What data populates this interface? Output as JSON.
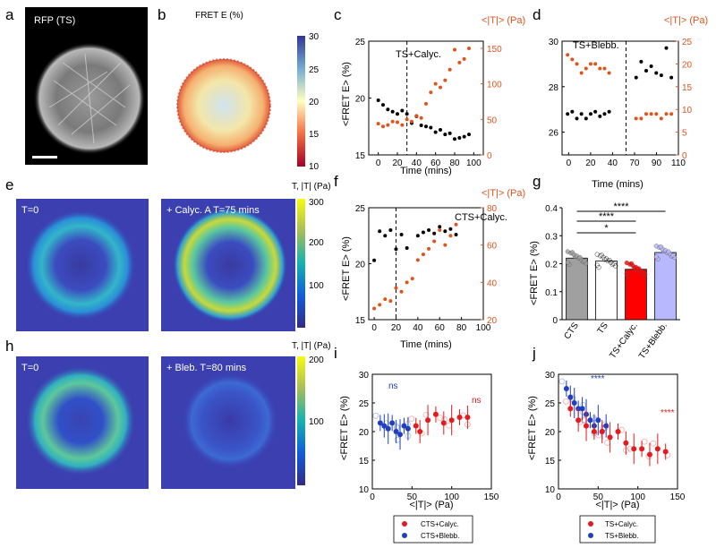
{
  "panels": {
    "a": {
      "letter": "a",
      "label": "RFP (TS)"
    },
    "b": {
      "letter": "b",
      "title": "FRET E (%)",
      "colorbar_ticks": [
        "30",
        "25",
        "20",
        "15",
        "10"
      ]
    },
    "c": {
      "letter": "c",
      "annotation": "TS+Calyc.",
      "right_label": "<|T|> (Pa)",
      "xlabel": "Time (mins)",
      "ylabel": "<FRET E> (%)"
    },
    "d": {
      "letter": "d",
      "annotation": "TS+Blebb.",
      "right_label": "<|T|> (Pa)",
      "xlabel": "Time (mins)"
    },
    "e": {
      "letter": "e",
      "left_label": "T=0",
      "right_label": "+ Calyc. A T=75 mins",
      "cbar_title": "T, |T| (Pa)",
      "cbar_ticks": [
        "300",
        "200",
        "100"
      ]
    },
    "f": {
      "letter": "f",
      "annotation": "CTS+Calyc.",
      "right_label": "<|T|> (Pa)",
      "xlabel": "Time (mins)",
      "ylabel": "<FRET E> (%)"
    },
    "g": {
      "letter": "g",
      "ylabel": "<FRET E> (%)",
      "sig": [
        "*",
        "****",
        "****"
      ]
    },
    "h": {
      "letter": "h",
      "left_label": "T=0",
      "right_label": "+ Bleb. T=80 mins",
      "cbar_title": "T, |T| (Pa)",
      "cbar_ticks": [
        "200",
        "100"
      ]
    },
    "i": {
      "letter": "i",
      "ylabel": "<FRET E> (%)",
      "xlabel": "<|T|> (Pa)",
      "ns_blue": "ns",
      "ns_red": "ns",
      "legend": [
        "CTS+Calyc.",
        "CTS+Blebb."
      ]
    },
    "j": {
      "letter": "j",
      "ylabel": "<FRET E> (%)",
      "xlabel": "<|T|> (Pa)",
      "sig_blue": "****",
      "sig_red": "****",
      "legend": [
        "TS+Calyc.",
        "TS+Blebb."
      ]
    }
  },
  "colors": {
    "black_series": "#000000",
    "orange_series": "#e0541c",
    "red": "#e41a1c",
    "blue": "#1f3fbf",
    "bar_gray": "#a0a0a0",
    "bar_white": "#ffffff",
    "bar_red": "#ff0000",
    "bar_blue": "#b8b8ff"
  },
  "chart_data": [
    {
      "id": "c",
      "type": "scatter",
      "xlabel": "Time (mins)",
      "ylabel": "<FRET E> (%)",
      "y2label": "<|T|> (Pa)",
      "xlim": [
        -10,
        110
      ],
      "xticks": [
        0,
        20,
        40,
        60,
        80,
        100
      ],
      "ylim": [
        15,
        25
      ],
      "yticks": [
        15,
        20,
        25
      ],
      "y2lim": [
        0,
        160
      ],
      "y2ticks": [
        0,
        50,
        100,
        150
      ],
      "vline": 30,
      "series": [
        {
          "name": "FRET",
          "axis": "left",
          "color": "#000000",
          "x": [
            0,
            5,
            10,
            15,
            20,
            25,
            30,
            35,
            40,
            45,
            50,
            55,
            60,
            65,
            70,
            75,
            80,
            85,
            90,
            95
          ],
          "y": [
            19.8,
            19.4,
            19.0,
            18.8,
            18.6,
            18.9,
            18.6,
            17.8,
            18.4,
            17.6,
            17.5,
            17.4,
            17.0,
            17.2,
            16.8,
            16.9,
            16.4,
            16.5,
            16.6,
            16.8
          ]
        },
        {
          "name": "Traction",
          "axis": "right",
          "color": "#e0541c",
          "x": [
            0,
            5,
            10,
            15,
            20,
            25,
            30,
            35,
            40,
            45,
            50,
            55,
            60,
            65,
            70,
            75,
            80,
            85,
            90,
            95
          ],
          "y": [
            44,
            40,
            42,
            47,
            46,
            42,
            50,
            47,
            55,
            52,
            72,
            88,
            100,
            95,
            105,
            120,
            148,
            130,
            135,
            150
          ]
        }
      ]
    },
    {
      "id": "d",
      "type": "scatter",
      "xlabel": "Time (mins)",
      "ylim": [
        25,
        30
      ],
      "yticks": [
        26,
        28,
        30
      ],
      "y2lim": [
        0,
        25
      ],
      "y2ticks": [
        0,
        5,
        10,
        15,
        20,
        25
      ],
      "xticks": [
        0,
        20,
        40,
        70,
        90,
        110
      ],
      "vline": 60,
      "series": [
        {
          "name": "FRET",
          "axis": "left",
          "color": "#000000",
          "x": [
            0,
            5,
            10,
            15,
            20,
            25,
            30,
            35,
            40,
            45,
            70,
            75,
            80,
            85,
            90,
            95,
            100,
            105
          ],
          "y": [
            26.8,
            26.9,
            26.6,
            26.8,
            26.6,
            26.8,
            26.9,
            26.7,
            26.8,
            26.9,
            28.4,
            29.1,
            28.7,
            28.9,
            28.6,
            28.5,
            29.7,
            28.4
          ]
        },
        {
          "name": "Traction",
          "axis": "right",
          "color": "#e0541c",
          "x": [
            0,
            5,
            10,
            15,
            20,
            25,
            30,
            35,
            40,
            45,
            70,
            75,
            80,
            85,
            90,
            95,
            100,
            105
          ],
          "y": [
            22,
            21,
            20,
            18,
            19,
            20,
            20,
            19,
            19,
            18,
            8,
            8,
            9,
            9,
            9,
            8,
            9,
            9
          ]
        }
      ]
    },
    {
      "id": "f",
      "type": "scatter",
      "xlabel": "Time (mins)",
      "ylabel": "<FRET E> (%)",
      "y2label": "<|T|> (Pa)",
      "xlim": [
        -5,
        100
      ],
      "xticks": [
        0,
        20,
        40,
        60,
        80,
        100
      ],
      "ylim": [
        15,
        25
      ],
      "yticks": [
        15,
        20,
        25
      ],
      "y2lim": [
        20,
        80
      ],
      "y2ticks": [
        20,
        40,
        60,
        80
      ],
      "vline": 20,
      "series": [
        {
          "name": "FRET",
          "axis": "left",
          "color": "#000000",
          "x": [
            0,
            5,
            10,
            15,
            20,
            25,
            30,
            40,
            45,
            50,
            55,
            60,
            65,
            70,
            75
          ],
          "y": [
            20.3,
            22.9,
            22.5,
            23.0,
            21.3,
            22.6,
            21.4,
            22.5,
            22.8,
            23.0,
            22.7,
            23.3,
            22.9,
            23.1,
            22.6
          ]
        },
        {
          "name": "Traction",
          "axis": "right",
          "color": "#e0541c",
          "x": [
            0,
            5,
            10,
            15,
            20,
            25,
            30,
            35,
            40,
            45,
            50,
            55,
            60,
            65,
            70,
            75
          ],
          "y": [
            26,
            28,
            31,
            30,
            37,
            35,
            40,
            42,
            52,
            55,
            58,
            62,
            68,
            60,
            65,
            71
          ]
        }
      ]
    },
    {
      "id": "g",
      "type": "bar",
      "ylabel": "<FRET E> (%)",
      "categories": [
        "CTS",
        "TS",
        "TS+Calyc.",
        "TS+Blebb."
      ],
      "values": [
        0.22,
        0.21,
        0.18,
        0.24
      ],
      "ylim": [
        0,
        0.4
      ],
      "yticks": [
        0,
        0.1,
        0.2,
        0.3,
        0.4
      ],
      "significance": [
        {
          "from": 0,
          "to": 2,
          "label": "*"
        },
        {
          "from": 0,
          "to": 2,
          "label": "****"
        },
        {
          "from": 0,
          "to": 3,
          "label": "****"
        }
      ]
    },
    {
      "id": "i",
      "type": "scatter",
      "xlabel": "<|T|> (Pa)",
      "ylabel": "<FRET E> (%)",
      "xlim": [
        0,
        150
      ],
      "xticks": [
        0,
        50,
        100,
        150
      ],
      "ylim": [
        10,
        30
      ],
      "yticks": [
        10,
        15,
        20,
        25,
        30
      ],
      "series": [
        {
          "name": "CTS+Blebb.",
          "color": "#1f3fbf",
          "x": [
            10,
            15,
            20,
            25,
            30,
            35,
            40,
            45
          ],
          "y": [
            21.5,
            21,
            20.5,
            21.5,
            20,
            19.5,
            21,
            20.5
          ]
        },
        {
          "name": "CTS+Calyc.",
          "color": "#e41a1c",
          "x": [
            55,
            60,
            70,
            80,
            90,
            100,
            110,
            120
          ],
          "y": [
            21,
            20,
            22,
            23,
            21.5,
            22,
            22.5,
            22.5
          ]
        }
      ]
    },
    {
      "id": "j",
      "type": "scatter",
      "xlabel": "<|T|> (Pa)",
      "ylabel": "<FRET E> (%)",
      "xlim": [
        0,
        150
      ],
      "xticks": [
        0,
        50,
        100,
        150
      ],
      "ylim": [
        10,
        30
      ],
      "yticks": [
        10,
        15,
        20,
        25,
        30
      ],
      "series": [
        {
          "name": "TS+Blebb.",
          "color": "#1f3fbf",
          "x": [
            10,
            15,
            20,
            25,
            30,
            35,
            40,
            45,
            50,
            55,
            60
          ],
          "y": [
            27.5,
            26,
            25,
            24,
            24,
            23,
            22,
            21,
            22,
            20,
            21
          ]
        },
        {
          "name": "TS+Calyc.",
          "color": "#e41a1c",
          "x": [
            15,
            25,
            35,
            45,
            55,
            65,
            75,
            85,
            95,
            105,
            115,
            125,
            135
          ],
          "y": [
            24,
            22,
            21,
            20,
            20,
            19,
            20,
            18,
            17,
            17,
            16,
            17,
            16.5
          ]
        }
      ]
    }
  ]
}
